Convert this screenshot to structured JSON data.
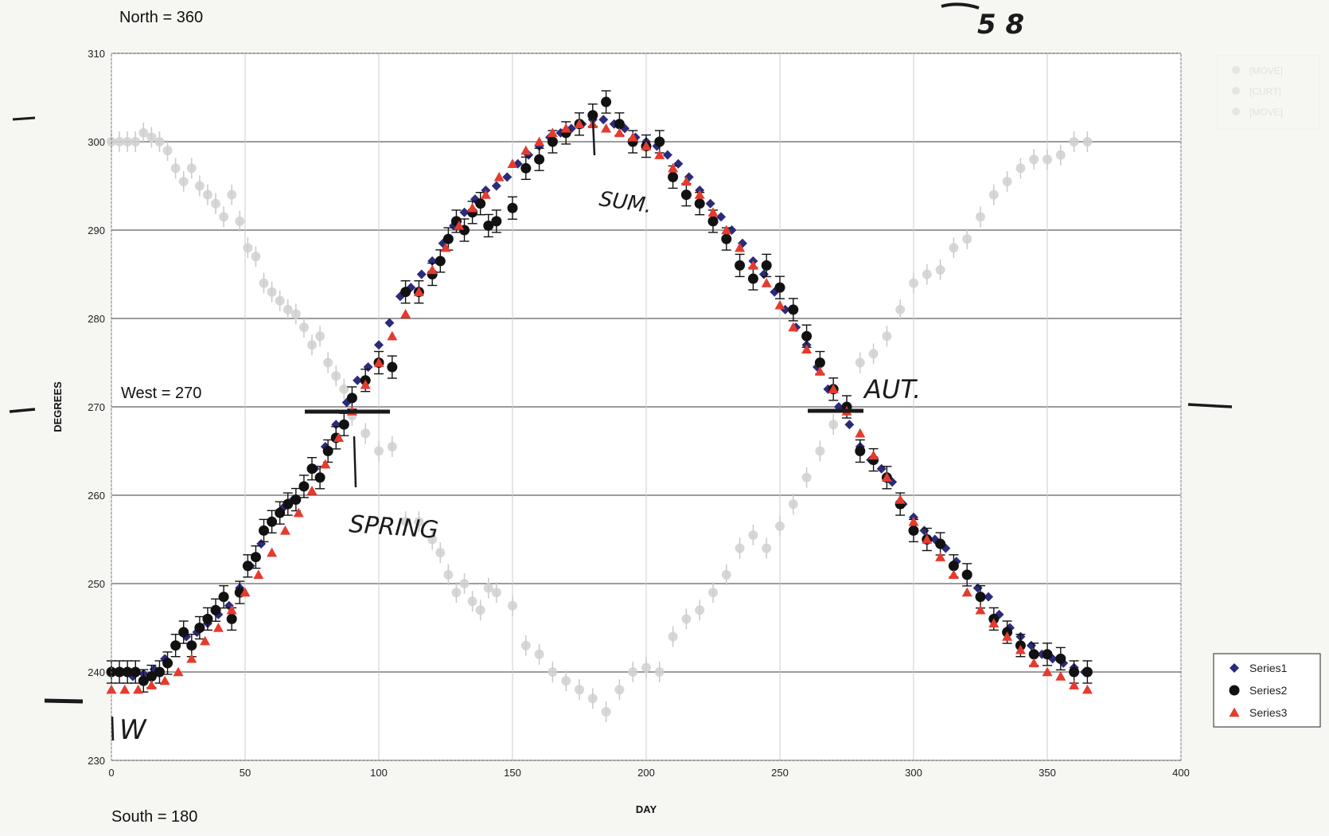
{
  "chart_data": {
    "type": "scatter",
    "title": "",
    "xlabel": "DAY",
    "ylabel": "DEGREES",
    "xlim": [
      0,
      400
    ],
    "ylim": [
      230,
      310
    ],
    "x_ticks": [
      0,
      50,
      100,
      150,
      200,
      250,
      300,
      350,
      400
    ],
    "y_ticks": [
      230,
      240,
      250,
      260,
      270,
      280,
      290,
      300,
      310
    ],
    "grid": true,
    "legend_position": "bottom-right",
    "direction_labels": {
      "north": "North = 360",
      "west": "West = 270",
      "south": "South = 180"
    },
    "annotations": {
      "spring": "SPRING",
      "summer": "SUM.",
      "autumn": "AUT.",
      "winter": "W",
      "corner": "5 8"
    },
    "series": [
      {
        "name": "Series1",
        "marker": "diamond",
        "color": "#2b2b7a",
        "x": [
          0,
          4,
          8,
          12,
          16,
          20,
          24,
          28,
          32,
          36,
          40,
          44,
          48,
          52,
          56,
          60,
          64,
          68,
          72,
          76,
          80,
          84,
          88,
          92,
          96,
          100,
          104,
          108,
          112,
          116,
          120,
          124,
          128,
          132,
          136,
          140,
          144,
          148,
          152,
          156,
          160,
          164,
          168,
          172,
          176,
          180,
          184,
          188,
          192,
          196,
          200,
          204,
          208,
          212,
          216,
          220,
          224,
          228,
          232,
          236,
          240,
          244,
          248,
          252,
          256,
          260,
          264,
          268,
          272,
          276,
          280,
          284,
          288,
          292,
          296,
          300,
          304,
          308,
          312,
          316,
          320,
          324,
          328,
          332,
          336,
          340,
          344,
          348,
          352,
          356,
          360,
          364
        ],
        "values": [
          240,
          240,
          239.5,
          239.8,
          240.3,
          241.5,
          243,
          244,
          244.5,
          245.5,
          246.5,
          247.5,
          249.5,
          252,
          254.5,
          257,
          258.5,
          259.5,
          261,
          263,
          265.5,
          268,
          270.5,
          273,
          274.5,
          277,
          279.5,
          282.5,
          283.5,
          285,
          286.5,
          288.5,
          290.5,
          292,
          293.5,
          294.5,
          295,
          296,
          297.5,
          298.5,
          299.5,
          300.5,
          301,
          301.5,
          302,
          302.5,
          302.5,
          302,
          301.5,
          300.5,
          300,
          299.5,
          298.5,
          297.5,
          296,
          294.5,
          293,
          291.5,
          290,
          288.5,
          286.5,
          285,
          283,
          281,
          279,
          277,
          274.5,
          272,
          270,
          268,
          265.5,
          264,
          263,
          261.5,
          259,
          257.5,
          256,
          255,
          254,
          252.5,
          251,
          249.5,
          248.5,
          246.5,
          245,
          244,
          243,
          242,
          241.5,
          241,
          240.5,
          240
        ]
      },
      {
        "name": "Series2",
        "marker": "circle",
        "color": "#111111",
        "x": [
          0,
          3,
          6,
          9,
          12,
          15,
          18,
          21,
          24,
          27,
          30,
          33,
          36,
          39,
          42,
          45,
          48,
          51,
          54,
          57,
          60,
          63,
          66,
          69,
          72,
          75,
          78,
          81,
          84,
          87,
          90,
          95,
          100,
          105,
          110,
          115,
          120,
          123,
          126,
          129,
          132,
          135,
          138,
          141,
          144,
          150,
          155,
          160,
          165,
          170,
          175,
          180,
          185,
          190,
          195,
          200,
          205,
          210,
          215,
          220,
          225,
          230,
          235,
          240,
          245,
          250,
          255,
          260,
          265,
          270,
          275,
          280,
          285,
          290,
          295,
          300,
          305,
          310,
          315,
          320,
          325,
          330,
          335,
          340,
          345,
          350,
          355,
          360,
          365
        ],
        "values": [
          240,
          240,
          240,
          240,
          239,
          239.5,
          240,
          241,
          243,
          244.5,
          243,
          245,
          246,
          247,
          248.5,
          246,
          249,
          252,
          253,
          256,
          257,
          258,
          259,
          259.5,
          261,
          263,
          262,
          265,
          266.5,
          268,
          271,
          273,
          275,
          274.5,
          283,
          283,
          285,
          286.5,
          289,
          291,
          290,
          292,
          293,
          290.5,
          291,
          292.5,
          297,
          298,
          300,
          301,
          302,
          303,
          304.5,
          302,
          300,
          299.5,
          300,
          296,
          294,
          293,
          291,
          289,
          286,
          284.5,
          286,
          283.5,
          281,
          278,
          275,
          272,
          270,
          265,
          264,
          262,
          259,
          256,
          255,
          254.5,
          252,
          251,
          248.5,
          246,
          244.5,
          243,
          242,
          242,
          241.5,
          240,
          240
        ]
      },
      {
        "name": "Series3",
        "marker": "triangle",
        "color": "#e53b2f",
        "x": [
          0,
          5,
          10,
          15,
          20,
          25,
          30,
          35,
          40,
          45,
          50,
          55,
          60,
          65,
          70,
          75,
          80,
          85,
          90,
          95,
          100,
          105,
          110,
          115,
          120,
          125,
          130,
          135,
          140,
          145,
          150,
          155,
          160,
          165,
          170,
          175,
          180,
          185,
          190,
          195,
          200,
          205,
          210,
          215,
          220,
          225,
          230,
          235,
          240,
          245,
          250,
          255,
          260,
          265,
          270,
          275,
          280,
          285,
          290,
          295,
          300,
          305,
          310,
          315,
          320,
          325,
          330,
          335,
          340,
          345,
          350,
          355,
          360,
          365
        ],
        "values": [
          238,
          238,
          238,
          238.5,
          239,
          240,
          241.5,
          243.5,
          245,
          247,
          249,
          251,
          253.5,
          256,
          258,
          260.5,
          263.5,
          266.5,
          269.5,
          272.5,
          275,
          278,
          280.5,
          283,
          285.5,
          288,
          290.5,
          292.5,
          294,
          296,
          297.5,
          299,
          300,
          301,
          301.5,
          302,
          302,
          301.5,
          301,
          300.5,
          299.5,
          298.5,
          297,
          295.5,
          294,
          292,
          290,
          288,
          286,
          284,
          281.5,
          279,
          276.5,
          274,
          272,
          269.5,
          267,
          264.5,
          262,
          259.5,
          257,
          255,
          253,
          251,
          249,
          247,
          245.5,
          244,
          242.5,
          241,
          240,
          239.5,
          238.5,
          238
        ]
      }
    ]
  },
  "ghost_legend": {
    "entries": [
      "[MOVE]",
      "[CURT]",
      "[MOVE]"
    ]
  }
}
